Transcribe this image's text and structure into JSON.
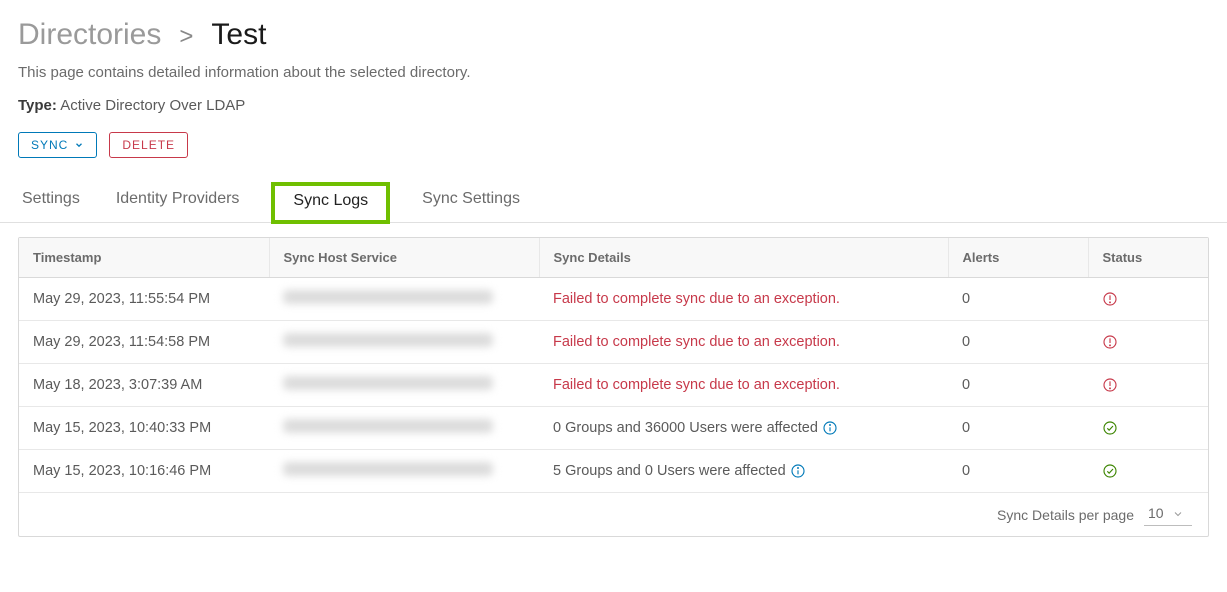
{
  "breadcrumb": {
    "parent": "Directories",
    "sep": ">",
    "current": "Test"
  },
  "subtitle": "This page contains detailed information about the selected directory.",
  "type": {
    "label": "Type:",
    "value": "Active Directory Over LDAP"
  },
  "buttons": {
    "sync": "SYNC",
    "delete": "DELETE"
  },
  "tabs": {
    "settings": "Settings",
    "identity_providers": "Identity Providers",
    "sync_logs": "Sync Logs",
    "sync_settings": "Sync Settings"
  },
  "table": {
    "headers": {
      "timestamp": "Timestamp",
      "host": "Sync Host Service",
      "details": "Sync Details",
      "alerts": "Alerts",
      "status": "Status"
    },
    "rows": [
      {
        "timestamp": "May 29, 2023, 11:55:54 PM",
        "details": "Failed to complete sync due to an exception.",
        "details_is_error": true,
        "has_info": false,
        "alerts": "0",
        "status": "error"
      },
      {
        "timestamp": "May 29, 2023, 11:54:58 PM",
        "details": "Failed to complete sync due to an exception.",
        "details_is_error": true,
        "has_info": false,
        "alerts": "0",
        "status": "error"
      },
      {
        "timestamp": "May 18, 2023, 3:07:39 AM",
        "details": "Failed to complete sync due to an exception.",
        "details_is_error": true,
        "has_info": false,
        "alerts": "0",
        "status": "error"
      },
      {
        "timestamp": "May 15, 2023, 10:40:33 PM",
        "details": "0 Groups and 36000 Users were affected",
        "details_is_error": false,
        "has_info": true,
        "alerts": "0",
        "status": "ok"
      },
      {
        "timestamp": "May 15, 2023, 10:16:46 PM",
        "details": "5 Groups and 0 Users were affected",
        "details_is_error": false,
        "has_info": true,
        "alerts": "0",
        "status": "ok"
      }
    ],
    "pager": {
      "label": "Sync Details per page",
      "value": "10"
    }
  },
  "colors": {
    "error": "#c7394a",
    "success": "#3c8500",
    "primary": "#0079b8",
    "highlight": "#6fbf00"
  }
}
